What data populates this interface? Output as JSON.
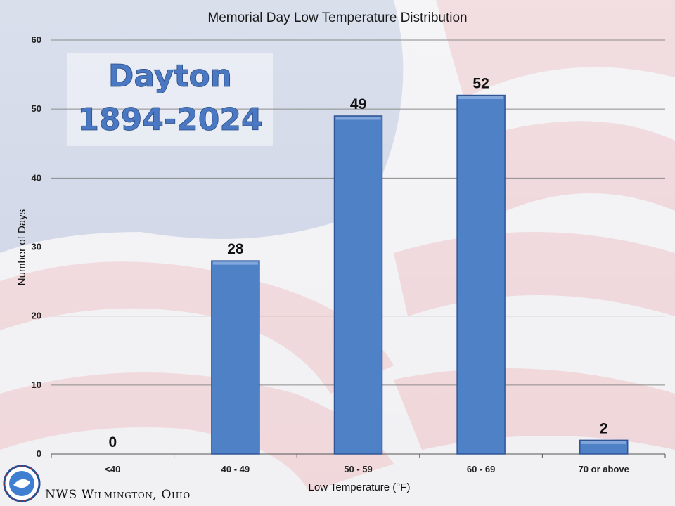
{
  "colors": {
    "bar_fill": "#4f81c7",
    "bar_stroke": "#2f5597",
    "gridline": "#8c8c8c",
    "station_text": "#4a78c2"
  },
  "icons": {
    "logo": "nws-logo-icon",
    "background": "american-flag-background"
  },
  "station": {
    "name": "Dayton",
    "years": "1894-2024"
  },
  "footer": {
    "credit": "NWS Wilmington, Ohio"
  },
  "chart_data": {
    "type": "bar",
    "title": "Memorial Day Low Temperature Distribution",
    "xlabel": "Low Temperature (°F)",
    "ylabel": "Number of Days",
    "categories": [
      "<40",
      "40 - 49",
      "50 - 59",
      "60 - 69",
      "70 or above"
    ],
    "values": [
      0,
      28,
      49,
      52,
      2
    ],
    "ylim": [
      0,
      60
    ],
    "yticks": [
      0,
      10,
      20,
      30,
      40,
      50,
      60
    ],
    "grid": true,
    "legend": "none"
  }
}
